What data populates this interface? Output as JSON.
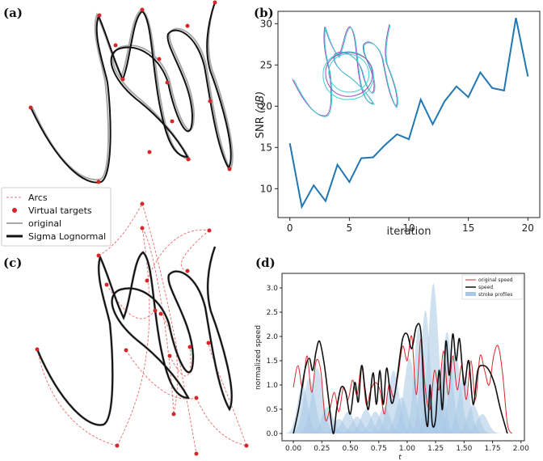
{
  "panels": {
    "a": "(a)",
    "b": "(b)",
    "c": "(c)",
    "d": "(d)"
  },
  "legend_ac": {
    "items": [
      "Arcs",
      "Virtual targets",
      "original",
      "Sigma Lognormal"
    ]
  },
  "colors": {
    "snr_line": "#1f77b4",
    "original": "#a8a8a8",
    "sigma": "#111111",
    "arcs": "#e8787a",
    "targets": "#d62728",
    "orig_speed": "#d62728",
    "stroke_fill": "#a8c9e6",
    "inset_a": "#9b4fb5",
    "inset_b": "#3fd0d6"
  },
  "chart_data": [
    {
      "panel": "b",
      "type": "line",
      "x": [
        0,
        1,
        2,
        3,
        4,
        5,
        6,
        7,
        8,
        9,
        10,
        11,
        12,
        13,
        14,
        15,
        16,
        17,
        18,
        19,
        20
      ],
      "y": [
        15.5,
        7.8,
        10.4,
        8.5,
        12.9,
        10.8,
        13.7,
        13.8,
        15.3,
        16.6,
        16.0,
        20.8,
        17.8,
        20.6,
        22.4,
        21.1,
        24.1,
        22.2,
        21.9,
        30.7,
        23.6
      ],
      "xticks": [
        "0",
        "5",
        "10",
        "15",
        "20"
      ],
      "yticks": [
        "10",
        "15",
        "20",
        "25",
        "30"
      ],
      "xlabel": "iteration",
      "ylabel_main": "SNR ",
      "ylabel_unit": "(dB)",
      "xlim": [
        -1,
        21
      ],
      "ylim": [
        6.5,
        31.5
      ]
    },
    {
      "panel": "d",
      "type": "line",
      "xlabel": "t",
      "ylabel": "normalized speed",
      "xticks": [
        "0.00",
        "0.25",
        "0.50",
        "0.75",
        "1.00",
        "1.25",
        "1.50",
        "1.75",
        "2.00"
      ],
      "yticks": [
        "0.0",
        "0.5",
        "1.0",
        "1.5",
        "2.0",
        "2.5",
        "3.0"
      ],
      "xlim": [
        -0.1,
        2.03
      ],
      "ylim": [
        -0.15,
        3.3
      ],
      "legend": [
        "original speed",
        "speed",
        "stroke profiles"
      ],
      "speed": {
        "x": [
          0,
          0.05,
          0.1,
          0.14,
          0.17,
          0.2,
          0.23,
          0.27,
          0.31,
          0.35,
          0.38,
          0.42,
          0.46,
          0.5,
          0.54,
          0.57,
          0.6,
          0.63,
          0.66,
          0.7,
          0.73,
          0.76,
          0.79,
          0.82,
          0.86,
          0.89,
          0.92,
          0.96,
          1.0,
          1.04,
          1.08,
          1.12,
          1.15,
          1.18,
          1.2,
          1.22,
          1.25,
          1.28,
          1.31,
          1.34,
          1.37,
          1.4,
          1.43,
          1.46,
          1.5,
          1.54,
          1.58,
          1.62,
          1.67,
          1.72,
          1.77,
          1.82,
          1.88
        ],
        "y": [
          0,
          0.55,
          1.3,
          1.55,
          1.3,
          1.7,
          1.9,
          1.45,
          0.7,
          0,
          0.5,
          0.95,
          0.85,
          0.4,
          1.05,
          0.65,
          1.4,
          0.9,
          0.5,
          1.25,
          0.6,
          1.3,
          0.6,
          1.35,
          0.65,
          0.8,
          1.3,
          1.95,
          2.05,
          1.75,
          2.2,
          2.1,
          0.7,
          0.15,
          1.0,
          0.2,
          0.3,
          1.3,
          0.5,
          1.9,
          1.2,
          2.05,
          1.5,
          1.95,
          1.0,
          1.5,
          0.6,
          1.3,
          1.4,
          1.3,
          1.0,
          0.5,
          0
        ]
      },
      "original_speed": {
        "x": [
          0,
          0.04,
          0.08,
          0.12,
          0.16,
          0.2,
          0.24,
          0.28,
          0.32,
          0.36,
          0.4,
          0.44,
          0.48,
          0.52,
          0.56,
          0.6,
          0.64,
          0.68,
          0.72,
          0.76,
          0.8,
          0.84,
          0.88,
          0.92,
          0.96,
          1.0,
          1.04,
          1.08,
          1.12,
          1.16,
          1.2,
          1.24,
          1.28,
          1.32,
          1.36,
          1.4,
          1.44,
          1.48,
          1.52,
          1.56,
          1.6,
          1.64,
          1.68,
          1.72,
          1.76,
          1.8,
          1.84,
          1.88,
          1.92
        ],
        "y": [
          0.95,
          1.4,
          0.95,
          1.6,
          0.85,
          1.5,
          1.3,
          0.3,
          0.5,
          0.85,
          0.45,
          0.95,
          0.7,
          1.1,
          0.8,
          1.4,
          0.6,
          0.9,
          1.05,
          0.9,
          0.4,
          1.0,
          0.75,
          1.2,
          1.8,
          1.5,
          2.0,
          0.8,
          1.95,
          0.9,
          0.5,
          1.3,
          0.9,
          1.7,
          0.8,
          1.6,
          0.9,
          1.4,
          0.7,
          1.5,
          0.7,
          1.6,
          1.3,
          1.0,
          1.6,
          1.8,
          1.2,
          0.2,
          0
        ]
      },
      "stroke_profiles": [
        {
          "c": 0.08,
          "w": 0.045,
          "h": 1.0
        },
        {
          "c": 0.14,
          "w": 0.05,
          "h": 1.15
        },
        {
          "c": 0.21,
          "w": 0.05,
          "h": 1.35
        },
        {
          "c": 0.3,
          "w": 0.05,
          "h": 0.55
        },
        {
          "c": 0.4,
          "w": 0.05,
          "h": 0.3
        },
        {
          "c": 0.48,
          "w": 0.05,
          "h": 0.45
        },
        {
          "c": 0.56,
          "w": 0.05,
          "h": 0.35
        },
        {
          "c": 0.64,
          "w": 0.05,
          "h": 0.5
        },
        {
          "c": 0.72,
          "w": 0.05,
          "h": 0.45
        },
        {
          "c": 0.8,
          "w": 0.05,
          "h": 0.55
        },
        {
          "c": 0.88,
          "w": 0.05,
          "h": 1.3
        },
        {
          "c": 0.95,
          "w": 0.05,
          "h": 0.75
        },
        {
          "c": 1.02,
          "w": 0.05,
          "h": 1.55
        },
        {
          "c": 1.1,
          "w": 0.04,
          "h": 2.2
        },
        {
          "c": 1.16,
          "w": 0.04,
          "h": 2.55
        },
        {
          "c": 1.23,
          "w": 0.045,
          "h": 3.1
        },
        {
          "c": 1.29,
          "w": 0.04,
          "h": 1.35
        },
        {
          "c": 1.35,
          "w": 0.045,
          "h": 2.1
        },
        {
          "c": 1.42,
          "w": 0.05,
          "h": 1.7
        },
        {
          "c": 1.5,
          "w": 0.05,
          "h": 1.2
        },
        {
          "c": 1.58,
          "w": 0.05,
          "h": 0.6
        },
        {
          "c": 1.66,
          "w": 0.05,
          "h": 0.4
        }
      ]
    }
  ]
}
